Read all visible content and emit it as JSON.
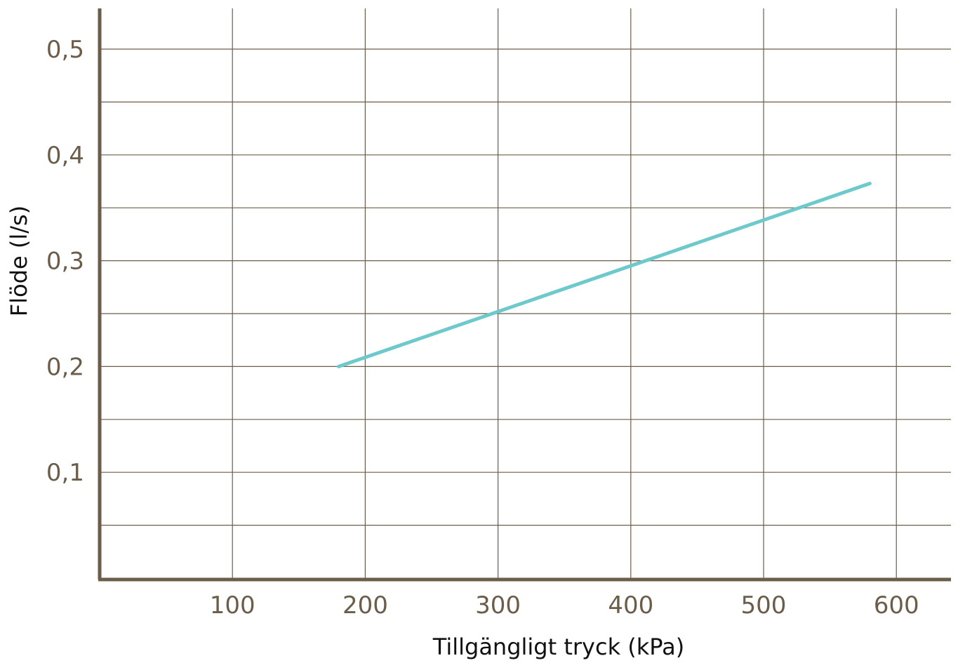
{
  "chart_data": {
    "type": "line",
    "xlabel": "Tillgängligt tryck (kPa)",
    "ylabel": "Flöde (l/s)",
    "xlim": [
      0,
      650
    ],
    "ylim": [
      0,
      0.54
    ],
    "x_ticks": [
      100,
      200,
      300,
      400,
      500,
      600
    ],
    "x_tick_labels": [
      "100",
      "200",
      "300",
      "400",
      "500",
      "600"
    ],
    "y_ticks": [
      0.1,
      0.2,
      0.3,
      0.4,
      0.5
    ],
    "y_tick_labels": [
      "0,1",
      "0,2",
      "0,3",
      "0,4",
      "0,5"
    ],
    "y_minor_grid": [
      0.05,
      0.15,
      0.25,
      0.35,
      0.45
    ],
    "grid": true,
    "colors": {
      "axis": "#6b5d4a",
      "grid": "#6b5d4a",
      "series": "#6ec9cc"
    },
    "series": [
      {
        "x": [
          180,
          580
        ],
        "y": [
          0.2,
          0.373
        ]
      }
    ]
  }
}
